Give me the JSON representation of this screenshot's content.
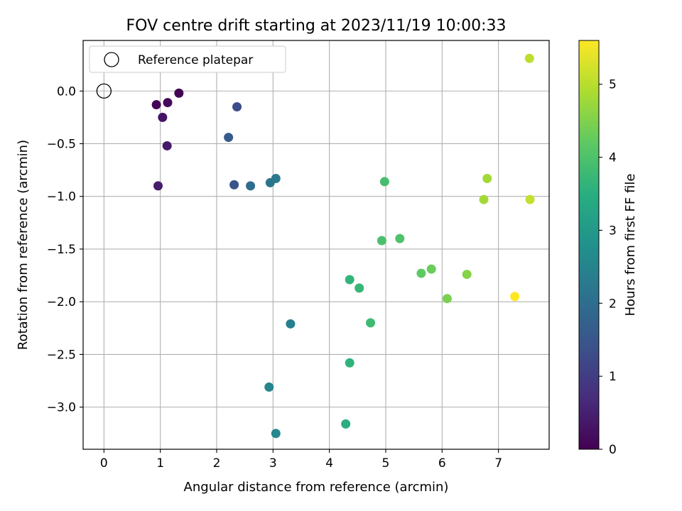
{
  "chart_data": {
    "type": "scatter",
    "title": "FOV centre drift starting at 2023/11/19 10:00:33",
    "xlabel": "Angular distance from reference (arcmin)",
    "ylabel": "Rotation from reference (arcmin)",
    "colorbar_label": "Hours from first FF file",
    "colormap": "viridis",
    "xlim": [
      -0.37,
      7.9
    ],
    "ylim": [
      -3.4,
      0.48
    ],
    "clim": [
      0,
      5.6
    ],
    "xticks": [
      0,
      1,
      2,
      3,
      4,
      5,
      6,
      7
    ],
    "yticks": [
      0.0,
      -0.5,
      -1.0,
      -1.5,
      -2.0,
      -2.5,
      -3.0
    ],
    "xtick_labels": [
      "0",
      "1",
      "2",
      "3",
      "4",
      "5",
      "6",
      "7"
    ],
    "ytick_labels": [
      "0.0",
      "−0.5",
      "−1.0",
      "−1.5",
      "−2.0",
      "−2.5",
      "−3.0"
    ],
    "cticks": [
      0,
      1,
      2,
      3,
      4,
      5
    ],
    "ctick_labels": [
      "0",
      "1",
      "2",
      "3",
      "4",
      "5"
    ],
    "grid": true,
    "legend": {
      "position": "upper-left",
      "entries": [
        "Reference platepar"
      ]
    },
    "reference_point": {
      "x": 0,
      "y": 0
    },
    "points": [
      {
        "x": 0.93,
        "y": -0.13,
        "c": 0.05
      },
      {
        "x": 1.13,
        "y": -0.11,
        "c": 0.1
      },
      {
        "x": 1.33,
        "y": -0.02,
        "c": 0.0
      },
      {
        "x": 1.04,
        "y": -0.25,
        "c": 0.3
      },
      {
        "x": 1.12,
        "y": -0.52,
        "c": 0.4
      },
      {
        "x": 0.96,
        "y": -0.9,
        "c": 0.45
      },
      {
        "x": 2.36,
        "y": -0.15,
        "c": 1.3
      },
      {
        "x": 2.21,
        "y": -0.44,
        "c": 1.6
      },
      {
        "x": 2.31,
        "y": -0.89,
        "c": 1.45
      },
      {
        "x": 2.6,
        "y": -0.9,
        "c": 2.0
      },
      {
        "x": 2.95,
        "y": -0.87,
        "c": 2.15
      },
      {
        "x": 3.05,
        "y": -0.83,
        "c": 2.25
      },
      {
        "x": 3.31,
        "y": -2.21,
        "c": 2.4
      },
      {
        "x": 2.93,
        "y": -2.81,
        "c": 2.55
      },
      {
        "x": 3.05,
        "y": -3.25,
        "c": 2.6
      },
      {
        "x": 4.29,
        "y": -3.16,
        "c": 3.5
      },
      {
        "x": 4.36,
        "y": -2.58,
        "c": 3.6
      },
      {
        "x": 4.36,
        "y": -1.79,
        "c": 3.65
      },
      {
        "x": 4.53,
        "y": -1.87,
        "c": 3.7
      },
      {
        "x": 4.73,
        "y": -2.2,
        "c": 3.8
      },
      {
        "x": 4.98,
        "y": -0.86,
        "c": 3.9
      },
      {
        "x": 4.93,
        "y": -1.42,
        "c": 3.95
      },
      {
        "x": 5.25,
        "y": -1.4,
        "c": 4.0
      },
      {
        "x": 5.63,
        "y": -1.73,
        "c": 4.2
      },
      {
        "x": 5.81,
        "y": -1.69,
        "c": 4.3
      },
      {
        "x": 6.09,
        "y": -1.97,
        "c": 4.45
      },
      {
        "x": 6.44,
        "y": -1.74,
        "c": 4.55
      },
      {
        "x": 6.8,
        "y": -0.83,
        "c": 4.8
      },
      {
        "x": 6.74,
        "y": -1.03,
        "c": 4.8
      },
      {
        "x": 7.55,
        "y": 0.31,
        "c": 5.05
      },
      {
        "x": 7.56,
        "y": -1.03,
        "c": 5.1
      },
      {
        "x": 7.29,
        "y": -1.95,
        "c": 5.6
      }
    ]
  }
}
